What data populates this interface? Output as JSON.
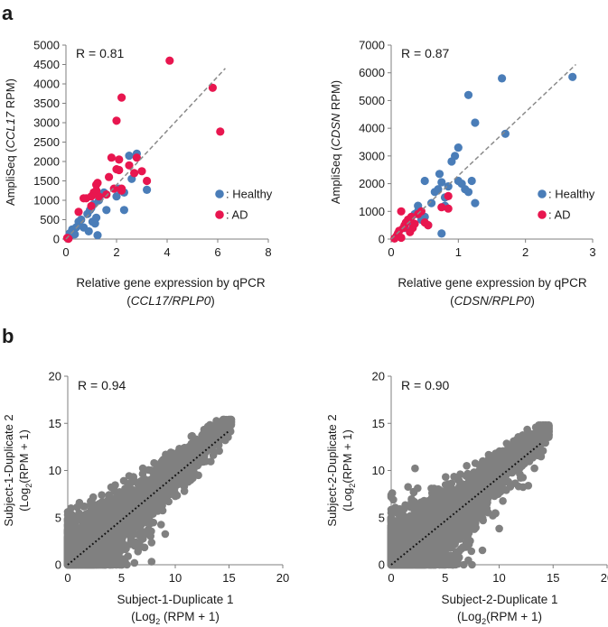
{
  "panel_labels": {
    "a": "a",
    "b": "b"
  },
  "colors": {
    "healthy": "#4a7db8",
    "ad": "#e8164f",
    "gray": "#808080",
    "axis": "#7f7f7f",
    "fit_dashed": "#8a8a8a",
    "fit_dotted": "#111111"
  },
  "chart_data": [
    {
      "id": "a-left",
      "type": "scatter",
      "title": "",
      "r_label": "R = 0.81",
      "ylabel": {
        "pre": "AmpliSeq (",
        "ital": "CCL17",
        "post": " RPM)"
      },
      "xlabel": "Relative gene expression by qPCR",
      "xlabel2": {
        "pre": "(",
        "ital": "CCL17/RPLP0",
        "post": ")"
      },
      "xlim": [
        0,
        8
      ],
      "ylim": [
        0,
        5000
      ],
      "xticks": [
        "0",
        "2",
        "4",
        "6",
        "8"
      ],
      "yticks": [
        "0",
        "500",
        "1000",
        "1500",
        "2000",
        "2500",
        "3000",
        "3500",
        "4000",
        "4500",
        "5000"
      ],
      "fit": {
        "style": "dashed",
        "x": [
          0,
          6.3
        ],
        "y": [
          0,
          4400
        ]
      },
      "legend": [
        {
          "name": ": Healthy",
          "color_key": "healthy"
        },
        {
          "name": ": AD",
          "color_key": "ad"
        }
      ],
      "series": [
        {
          "name": "Healthy",
          "color_key": "healthy",
          "points": [
            [
              0.1,
              50
            ],
            [
              0.15,
              150
            ],
            [
              0.2,
              100
            ],
            [
              0.25,
              250
            ],
            [
              0.3,
              180
            ],
            [
              0.35,
              120
            ],
            [
              0.4,
              300
            ],
            [
              0.5,
              450
            ],
            [
              0.6,
              500
            ],
            [
              0.7,
              300
            ],
            [
              0.85,
              650
            ],
            [
              0.9,
              200
            ],
            [
              0.95,
              750
            ],
            [
              1.0,
              800
            ],
            [
              1.05,
              450
            ],
            [
              1.1,
              900
            ],
            [
              1.15,
              400
            ],
            [
              1.2,
              550
            ],
            [
              1.25,
              100
            ],
            [
              1.3,
              1000
            ],
            [
              1.4,
              1150
            ],
            [
              1.5,
              1200
            ],
            [
              1.6,
              750
            ],
            [
              2.0,
              1100
            ],
            [
              2.1,
              1300
            ],
            [
              2.3,
              1200
            ],
            [
              2.5,
              2150
            ],
            [
              2.6,
              1550
            ],
            [
              2.8,
              2200
            ],
            [
              3.2,
              1270
            ],
            [
              2.3,
              750
            ]
          ]
        },
        {
          "name": "AD",
          "color_key": "ad",
          "points": [
            [
              0.05,
              30
            ],
            [
              0.1,
              10
            ],
            [
              0.5,
              700
            ],
            [
              0.7,
              1050
            ],
            [
              0.8,
              1050
            ],
            [
              1.0,
              1100
            ],
            [
              1.0,
              850
            ],
            [
              1.1,
              1200
            ],
            [
              1.2,
              1250
            ],
            [
              1.2,
              1400
            ],
            [
              1.25,
              1450
            ],
            [
              1.3,
              1100
            ],
            [
              1.6,
              1150
            ],
            [
              1.7,
              1600
            ],
            [
              1.8,
              2100
            ],
            [
              1.9,
              1300
            ],
            [
              2.0,
              1800
            ],
            [
              2.1,
              1780
            ],
            [
              2.1,
              2050
            ],
            [
              2.2,
              1250
            ],
            [
              2.2,
              1300
            ],
            [
              2.2,
              3650
            ],
            [
              2.0,
              3050
            ],
            [
              2.5,
              1900
            ],
            [
              2.7,
              1700
            ],
            [
              2.8,
              2100
            ],
            [
              3.0,
              1750
            ],
            [
              3.2,
              1500
            ],
            [
              4.1,
              4600
            ],
            [
              5.8,
              3900
            ],
            [
              6.1,
              2770
            ]
          ]
        }
      ]
    },
    {
      "id": "a-right",
      "type": "scatter",
      "title": "",
      "r_label": "R = 0.87",
      "ylabel": {
        "pre": "AmpliSeq (",
        "ital": "CDSN",
        "post": " RPM)"
      },
      "xlabel": "Relative gene expression by qPCR",
      "xlabel2": {
        "pre": "(",
        "ital": "CDSN/RPLP0",
        "post": ")"
      },
      "xlim": [
        0,
        3
      ],
      "ylim": [
        0,
        7000
      ],
      "xticks": [
        "0",
        "1",
        "2",
        "3"
      ],
      "yticks": [
        "0",
        "1000",
        "2000",
        "3000",
        "4000",
        "5000",
        "6000",
        "7000"
      ],
      "fit": {
        "style": "dashed",
        "x": [
          0,
          2.75
        ],
        "y": [
          0,
          6300
        ]
      },
      "legend": [
        {
          "name": ": Healthy",
          "color_key": "healthy"
        },
        {
          "name": ": AD",
          "color_key": "ad"
        }
      ],
      "series": [
        {
          "name": "Healthy",
          "color_key": "healthy",
          "points": [
            [
              0.2,
              400
            ],
            [
              0.3,
              600
            ],
            [
              0.35,
              900
            ],
            [
              0.4,
              1000
            ],
            [
              0.45,
              700
            ],
            [
              0.5,
              800
            ],
            [
              0.55,
              500
            ],
            [
              0.6,
              1300
            ],
            [
              0.65,
              1700
            ],
            [
              0.7,
              1800
            ],
            [
              0.72,
              2350
            ],
            [
              0.75,
              2050
            ],
            [
              0.8,
              1200
            ],
            [
              0.8,
              1500
            ],
            [
              0.85,
              1900
            ],
            [
              0.9,
              2800
            ],
            [
              0.95,
              3000
            ],
            [
              1.0,
              2100
            ],
            [
              1.0,
              3300
            ],
            [
              1.05,
              2000
            ],
            [
              1.1,
              1800
            ],
            [
              1.15,
              1700
            ],
            [
              1.2,
              2100
            ],
            [
              1.25,
              1300
            ],
            [
              1.15,
              5200
            ],
            [
              1.25,
              4200
            ],
            [
              1.65,
              5800
            ],
            [
              1.7,
              3800
            ],
            [
              2.7,
              5850
            ],
            [
              0.75,
              200
            ],
            [
              0.5,
              2100
            ],
            [
              0.4,
              1200
            ]
          ]
        },
        {
          "name": "AD",
          "color_key": "ad",
          "points": [
            [
              0.05,
              20
            ],
            [
              0.08,
              100
            ],
            [
              0.1,
              200
            ],
            [
              0.12,
              300
            ],
            [
              0.15,
              1000
            ],
            [
              0.18,
              400
            ],
            [
              0.2,
              500
            ],
            [
              0.22,
              600
            ],
            [
              0.25,
              700
            ],
            [
              0.28,
              250
            ],
            [
              0.3,
              800
            ],
            [
              0.32,
              400
            ],
            [
              0.35,
              550
            ],
            [
              0.4,
              900
            ],
            [
              0.45,
              1000
            ],
            [
              0.5,
              600
            ],
            [
              0.55,
              500
            ],
            [
              0.85,
              1550
            ],
            [
              0.85,
              1100
            ],
            [
              0.75,
              1150
            ],
            [
              0.15,
              50
            ]
          ]
        }
      ]
    },
    {
      "id": "b-left",
      "type": "scatter",
      "title": "",
      "r_label": "R = 0.94",
      "ylabel1": "Subject-1-Duplicate 2",
      "ylabel2": {
        "pre": "(Log",
        "sub": "2",
        "post": "(RPM + 1)"
      },
      "xlabel1": "Subject-1-Duplicate 1",
      "xlabel2": {
        "pre": "(Log",
        "sub": "2",
        "post": " (RPM + 1)"
      },
      "xlim": [
        0,
        20
      ],
      "ylim": [
        0,
        20
      ],
      "xticks": [
        "0",
        "5",
        "10",
        "15",
        "20"
      ],
      "yticks": [
        "0",
        "5",
        "10",
        "15",
        "20"
      ],
      "fit": {
        "style": "dotted",
        "x": [
          0,
          15
        ],
        "y": [
          0,
          14.2
        ]
      },
      "cloud": {
        "n": 2600,
        "max": 15.2,
        "spread": 0.9,
        "seed": 7
      },
      "series": [
        {
          "name": "Genes",
          "color_key": "gray",
          "points": [
            [
              15.2,
              15.4
            ],
            [
              14.6,
              14.9
            ],
            [
              14.1,
              14.3
            ],
            [
              13.5,
              13.7
            ],
            [
              5.1,
              0.1
            ],
            [
              6.2,
              0.2
            ],
            [
              0.2,
              5.2
            ],
            [
              0.3,
              6.0
            ],
            [
              4.8,
              0
            ],
            [
              0,
              4.7
            ]
          ]
        }
      ]
    },
    {
      "id": "b-right",
      "type": "scatter",
      "title": "",
      "r_label": "R = 0.90",
      "ylabel1": "Subject-2-Duplicate 2",
      "ylabel2": {
        "pre": "(Log",
        "sub": "2",
        "post": "(RPM + 1)"
      },
      "xlabel1": "Subject-2-Duplicate 1",
      "xlabel2": {
        "pre": "(Log",
        "sub": "2",
        "post": "(RPM + 1)"
      },
      "xlim": [
        0,
        20
      ],
      "ylim": [
        0,
        20
      ],
      "xticks": [
        "0",
        "5",
        "10",
        "15",
        "20"
      ],
      "yticks": [
        "0",
        "5",
        "10",
        "15",
        "20"
      ],
      "fit": {
        "style": "dotted",
        "x": [
          0,
          14
        ],
        "y": [
          0,
          13.0
        ]
      },
      "cloud": {
        "n": 2600,
        "max": 14.6,
        "spread": 1.05,
        "seed": 11
      },
      "series": [
        {
          "name": "Genes",
          "color_key": "gray",
          "points": [
            [
              14.6,
              14.7
            ],
            [
              14.2,
              14.3
            ],
            [
              13.7,
              13.8
            ],
            [
              0.1,
              7.6
            ],
            [
              0.2,
              6.9
            ],
            [
              6.2,
              0.1
            ],
            [
              5.8,
              0.3
            ],
            [
              0,
              5.5
            ],
            [
              5.0,
              0
            ]
          ]
        }
      ]
    }
  ]
}
